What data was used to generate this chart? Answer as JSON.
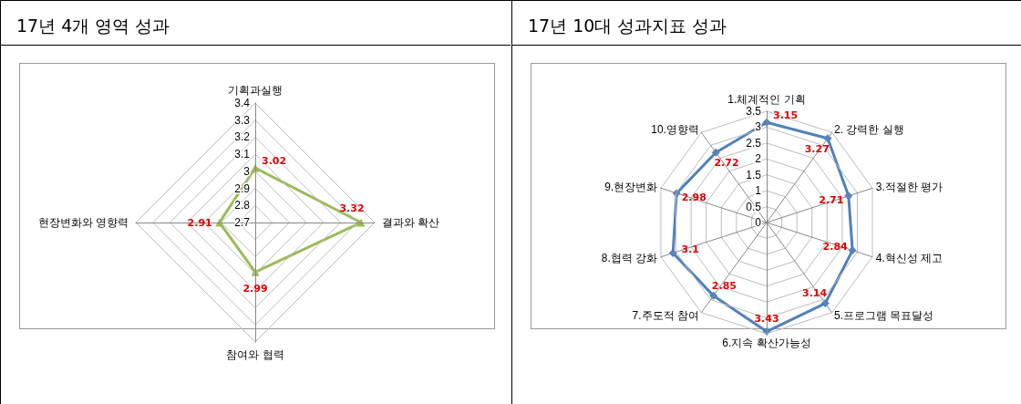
{
  "chart_data": [
    {
      "type": "radar",
      "title": "17년 4개 영역 성과",
      "categories": [
        "기획과실행",
        "결과와 확산",
        "참여와 협력",
        "현장변화와 영향력"
      ],
      "series": [
        {
          "color": "#9bbb59",
          "values": [
            3.02,
            3.32,
            2.99,
            2.91
          ]
        }
      ],
      "ylim": [
        2.7,
        3.4
      ],
      "yticks": [
        2.7,
        2.8,
        2.9,
        3,
        3.1,
        3.2,
        3.3,
        3.4
      ],
      "data_labels": true,
      "marker": "triangle",
      "grid": true
    },
    {
      "type": "radar",
      "title": "17년 10대 성과지표 성과",
      "categories": [
        "1.체계적인 기획",
        "2. 강력한 실행",
        "3.적절한 평가",
        "4.혁신성 제고",
        "5.프로그램 목표달성",
        "6.지속 확산가능성",
        "7.주도적 참여",
        "8.협력 강화",
        "9.현장변화",
        "10.영향력"
      ],
      "series": [
        {
          "color": "#4f81bd",
          "values": [
            3.15,
            3.27,
            2.71,
            2.84,
            3.14,
            3.43,
            2.85,
            3.1,
            2.98,
            2.72
          ]
        }
      ],
      "ylim": [
        0,
        3.5
      ],
      "yticks": [
        0,
        0.5,
        1,
        1.5,
        2,
        2.5,
        3,
        3.5
      ],
      "data_labels": true,
      "marker": "diamond",
      "grid": true
    }
  ]
}
